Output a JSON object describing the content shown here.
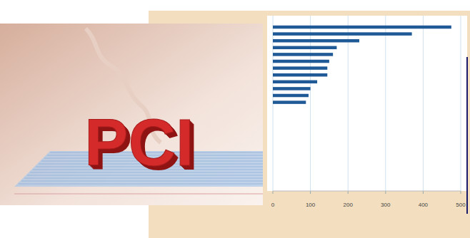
{
  "chart_data": {
    "type": "bar",
    "orientation": "horizontal",
    "categories": [
      null,
      null,
      null,
      null,
      null,
      null,
      null,
      null,
      null,
      null,
      null,
      null
    ],
    "values": [
      475,
      370,
      230,
      170,
      160,
      150,
      145,
      145,
      118,
      100,
      95,
      88
    ],
    "color": "#1f5a96",
    "xlim": [
      0,
      500
    ],
    "xticks": [
      0,
      100,
      200,
      300,
      400,
      500
    ],
    "grid": true
  },
  "graphic": {
    "text": "PCI"
  }
}
